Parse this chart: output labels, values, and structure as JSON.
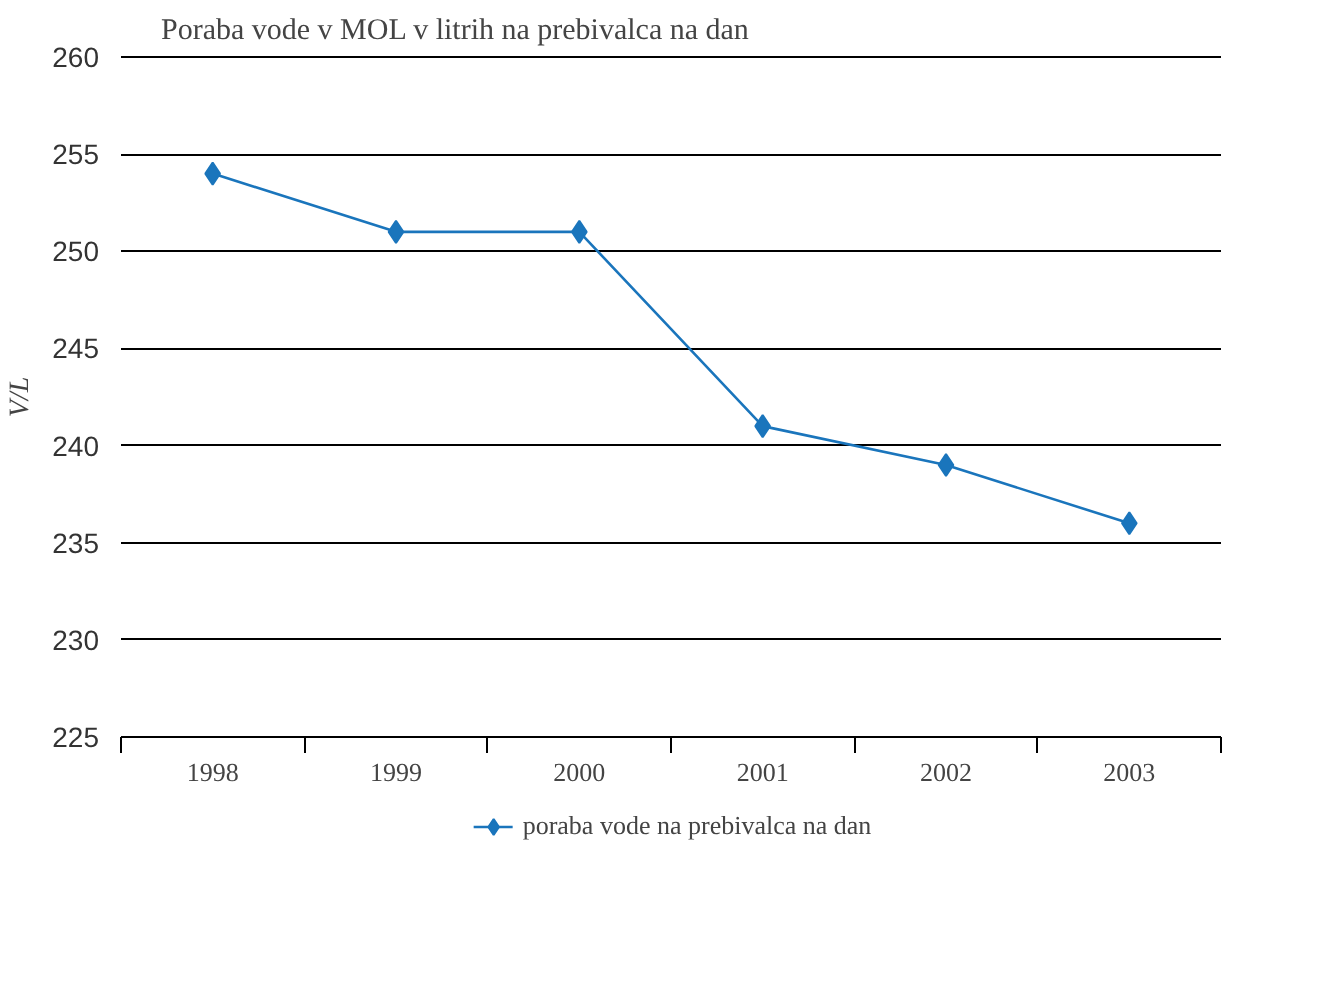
{
  "chart_data": {
    "type": "line",
    "title": "Poraba vode v MOL v litrih na prebivalca na dan",
    "ylabel": "V/L",
    "categories": [
      "1998",
      "1999",
      "2000",
      "2001",
      "2002",
      "2003"
    ],
    "series": [
      {
        "name": "poraba vode na prebivalca na dan",
        "color": "#1a75bc",
        "values": [
          254,
          251,
          251,
          241,
          239,
          236
        ]
      }
    ],
    "ylim": [
      225,
      260
    ],
    "yticks": [
      225,
      230,
      235,
      240,
      245,
      250,
      255,
      260
    ],
    "grid": "y",
    "legend": "bottom",
    "marker": "diamond",
    "line_style": "solid"
  }
}
